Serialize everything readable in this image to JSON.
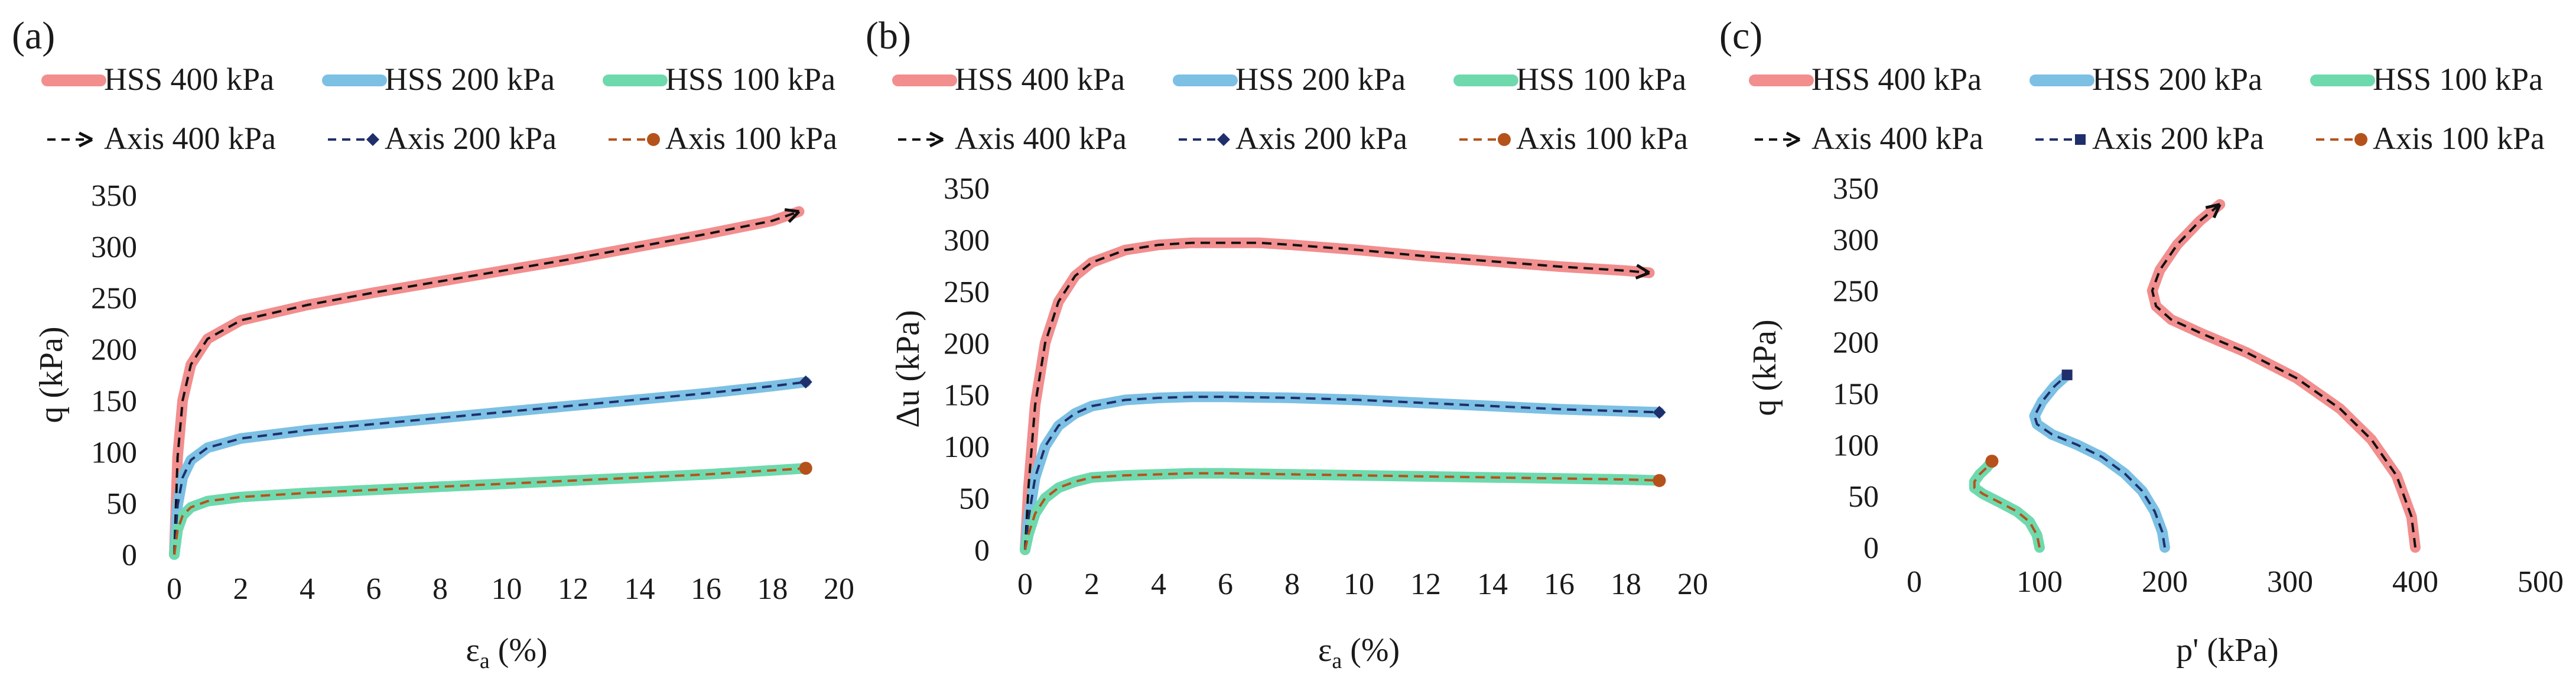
{
  "chart_data": [
    {
      "type": "line",
      "panel_label": "(a)",
      "xlabel": "ε",
      "xlabel_sub": "a",
      "xlabel_unit": " (%)",
      "ylabel": "q (kPa)",
      "xlim": [
        0,
        20
      ],
      "ylim": [
        0,
        350
      ],
      "xticks": [
        0,
        2,
        4,
        6,
        8,
        10,
        12,
        14,
        16,
        18,
        20
      ],
      "yticks": [
        0,
        50,
        100,
        150,
        200,
        250,
        300,
        350
      ],
      "legend": [
        "HSS 400 kPa",
        "HSS 200 kPa",
        "HSS 100 kPa",
        "Axis 400 kPa",
        "Axis 200 kPa",
        "Axis 100 kPa"
      ],
      "series": [
        {
          "name": "HSS 400 kPa",
          "style": "solid",
          "color": "#f28e8e",
          "x": [
            0,
            0.1,
            0.25,
            0.5,
            1,
            2,
            4,
            6,
            8,
            10,
            12,
            14,
            16,
            18,
            18.8
          ],
          "y": [
            0,
            95,
            150,
            185,
            210,
            228,
            243,
            255,
            266,
            277,
            288,
            300,
            312,
            325,
            334
          ]
        },
        {
          "name": "HSS 200 kPa",
          "style": "solid",
          "color": "#7cc0e4",
          "x": [
            0,
            0.1,
            0.25,
            0.5,
            1,
            2,
            4,
            6,
            8,
            10,
            12,
            14,
            16,
            18,
            19
          ],
          "y": [
            0,
            48,
            75,
            92,
            104,
            113,
            121,
            127,
            133,
            139,
            145,
            151,
            157,
            164,
            168
          ]
        },
        {
          "name": "HSS 100 kPa",
          "style": "solid",
          "color": "#6fd9ae",
          "x": [
            0,
            0.1,
            0.25,
            0.5,
            1,
            2,
            4,
            6,
            8,
            10,
            12,
            14,
            16,
            18,
            19
          ],
          "y": [
            0,
            24,
            38,
            46,
            52,
            56,
            60,
            63,
            66,
            69,
            72,
            75,
            78,
            82,
            84
          ]
        },
        {
          "name": "Axis 400 kPa",
          "style": "dashed",
          "marker": "arrow",
          "color": "#111111",
          "x": [
            0,
            0.1,
            0.25,
            0.5,
            1,
            2,
            4,
            6,
            8,
            10,
            12,
            14,
            16,
            18,
            18.8
          ],
          "y": [
            0,
            95,
            150,
            185,
            210,
            228,
            243,
            255,
            266,
            277,
            288,
            300,
            312,
            325,
            334
          ]
        },
        {
          "name": "Axis 200 kPa",
          "style": "dashed",
          "marker": "diamond",
          "color": "#1f2f6b",
          "x": [
            0,
            0.1,
            0.25,
            0.5,
            1,
            2,
            4,
            6,
            8,
            10,
            12,
            14,
            16,
            18,
            19
          ],
          "y": [
            0,
            48,
            75,
            92,
            104,
            113,
            121,
            127,
            133,
            139,
            145,
            151,
            157,
            164,
            168
          ]
        },
        {
          "name": "Axis 100 kPa",
          "style": "dashed",
          "marker": "circle",
          "color": "#b5521b",
          "x": [
            0,
            0.1,
            0.25,
            0.5,
            1,
            2,
            4,
            6,
            8,
            10,
            12,
            14,
            16,
            18,
            19
          ],
          "y": [
            0,
            24,
            38,
            46,
            52,
            56,
            60,
            63,
            66,
            69,
            72,
            75,
            78,
            82,
            84
          ]
        }
      ]
    },
    {
      "type": "line",
      "panel_label": "(b)",
      "xlabel": "ε",
      "xlabel_sub": "a",
      "xlabel_unit": " (%)",
      "ylabel": "Δu (kPa)",
      "xlim": [
        0,
        20
      ],
      "ylim": [
        0,
        350
      ],
      "xticks": [
        0,
        2,
        4,
        6,
        8,
        10,
        12,
        14,
        16,
        18,
        20
      ],
      "yticks": [
        0,
        50,
        100,
        150,
        200,
        250,
        300,
        350
      ],
      "legend": [
        "HSS 400 kPa",
        "HSS 200 kPa",
        "HSS 100 kPa",
        "Axis 400 kPa",
        "Axis 200 kPa",
        "Axis 100 kPa"
      ],
      "series": [
        {
          "name": "HSS 400 kPa",
          "style": "solid",
          "color": "#f28e8e",
          "x": [
            0,
            0.1,
            0.3,
            0.6,
            1,
            1.5,
            2,
            3,
            4,
            5,
            6,
            7,
            8,
            10,
            12,
            14,
            16,
            18,
            18.7
          ],
          "y": [
            0,
            60,
            140,
            200,
            240,
            265,
            278,
            290,
            295,
            297,
            297,
            297,
            295,
            290,
            284,
            279,
            274,
            270,
            268
          ]
        },
        {
          "name": "HSS 200 kPa",
          "style": "solid",
          "color": "#7cc0e4",
          "x": [
            0,
            0.1,
            0.3,
            0.6,
            1,
            1.5,
            2,
            3,
            4,
            5,
            6,
            8,
            10,
            12,
            14,
            16,
            18,
            19
          ],
          "y": [
            0,
            30,
            70,
            100,
            120,
            132,
            139,
            145,
            147,
            148,
            148,
            147,
            145,
            142,
            139,
            136,
            134,
            133
          ]
        },
        {
          "name": "HSS 100 kPa",
          "style": "solid",
          "color": "#6fd9ae",
          "x": [
            0,
            0.1,
            0.3,
            0.6,
            1,
            1.5,
            2,
            3,
            4,
            5,
            6,
            8,
            10,
            12,
            14,
            16,
            18,
            19
          ],
          "y": [
            0,
            15,
            35,
            50,
            60,
            66,
            70,
            72,
            73,
            74,
            74,
            73,
            72,
            71,
            70,
            69,
            68,
            67
          ]
        },
        {
          "name": "Axis 400 kPa",
          "style": "dashed",
          "marker": "arrow",
          "color": "#111111",
          "x": [
            0,
            0.1,
            0.3,
            0.6,
            1,
            1.5,
            2,
            3,
            4,
            5,
            6,
            7,
            8,
            10,
            12,
            14,
            16,
            18,
            18.7
          ],
          "y": [
            0,
            60,
            140,
            200,
            240,
            265,
            278,
            290,
            295,
            297,
            297,
            297,
            295,
            290,
            284,
            279,
            274,
            270,
            268
          ]
        },
        {
          "name": "Axis 200 kPa",
          "style": "dashed",
          "marker": "diamond",
          "color": "#1f2f6b",
          "x": [
            0,
            0.1,
            0.3,
            0.6,
            1,
            1.5,
            2,
            3,
            4,
            5,
            6,
            8,
            10,
            12,
            14,
            16,
            18,
            19
          ],
          "y": [
            0,
            30,
            70,
            100,
            120,
            132,
            139,
            145,
            147,
            148,
            148,
            147,
            145,
            142,
            139,
            136,
            134,
            133
          ]
        },
        {
          "name": "Axis 100 kPa",
          "style": "dashed",
          "marker": "circle",
          "color": "#b5521b",
          "x": [
            0,
            0.1,
            0.3,
            0.6,
            1,
            1.5,
            2,
            3,
            4,
            5,
            6,
            8,
            10,
            12,
            14,
            16,
            18,
            19
          ],
          "y": [
            0,
            15,
            35,
            50,
            60,
            66,
            70,
            72,
            73,
            74,
            74,
            73,
            72,
            71,
            70,
            69,
            68,
            67
          ]
        }
      ]
    },
    {
      "type": "line",
      "panel_label": "(c)",
      "xlabel": "p' (kPa)",
      "xlabel_sub": "",
      "xlabel_unit": "",
      "ylabel": "q (kPa)",
      "xlim": [
        0,
        500
      ],
      "ylim": [
        0,
        350
      ],
      "xticks": [
        0,
        100,
        200,
        300,
        400,
        500
      ],
      "yticks": [
        0,
        50,
        100,
        150,
        200,
        250,
        300,
        350
      ],
      "legend": [
        "HSS 400 kPa",
        "HSS 200 kPa",
        "HSS 100 kPa",
        "Axis 400 kPa",
        "Axis 200 kPa",
        "Axis 100 kPa"
      ],
      "series": [
        {
          "name": "HSS 400 kPa",
          "style": "solid",
          "color": "#f28e8e",
          "x": [
            400,
            397,
            385,
            365,
            340,
            305,
            265,
            230,
            205,
            193,
            190,
            196,
            210,
            228,
            244
          ],
          "y": [
            0,
            30,
            70,
            105,
            135,
            165,
            190,
            208,
            222,
            235,
            250,
            270,
            295,
            318,
            334
          ]
        },
        {
          "name": "HSS 200 kPa",
          "style": "solid",
          "color": "#7cc0e4",
          "x": [
            200,
            198,
            192,
            182,
            168,
            150,
            130,
            110,
            98,
            96,
            102,
            112,
            122
          ],
          "y": [
            0,
            15,
            35,
            55,
            72,
            88,
            100,
            110,
            120,
            128,
            142,
            157,
            168
          ]
        },
        {
          "name": "HSS 100 kPa",
          "style": "solid",
          "color": "#6fd9ae",
          "x": [
            100,
            98,
            92,
            82,
            68,
            55,
            48,
            48,
            52,
            58,
            62
          ],
          "y": [
            0,
            12,
            25,
            35,
            44,
            52,
            58,
            64,
            71,
            78,
            84
          ]
        },
        {
          "name": "Axis 400 kPa",
          "style": "dashed",
          "marker": "arrow",
          "color": "#111111",
          "x": [
            400,
            397,
            385,
            365,
            340,
            305,
            265,
            230,
            205,
            193,
            190,
            196,
            210,
            228,
            244
          ],
          "y": [
            0,
            30,
            70,
            105,
            135,
            165,
            190,
            208,
            222,
            235,
            250,
            270,
            295,
            318,
            334
          ]
        },
        {
          "name": "Axis 200 kPa",
          "style": "dashed",
          "marker": "square",
          "color": "#1f2f6b",
          "x": [
            200,
            198,
            192,
            182,
            168,
            150,
            130,
            110,
            98,
            96,
            102,
            112,
            122
          ],
          "y": [
            0,
            15,
            35,
            55,
            72,
            88,
            100,
            110,
            120,
            128,
            142,
            157,
            168
          ]
        },
        {
          "name": "Axis 100 kPa",
          "style": "dashed",
          "marker": "circle",
          "color": "#b5521b",
          "x": [
            100,
            98,
            92,
            82,
            68,
            55,
            48,
            48,
            52,
            58,
            62
          ],
          "y": [
            0,
            12,
            25,
            35,
            44,
            52,
            58,
            64,
            71,
            78,
            84
          ]
        }
      ]
    }
  ]
}
